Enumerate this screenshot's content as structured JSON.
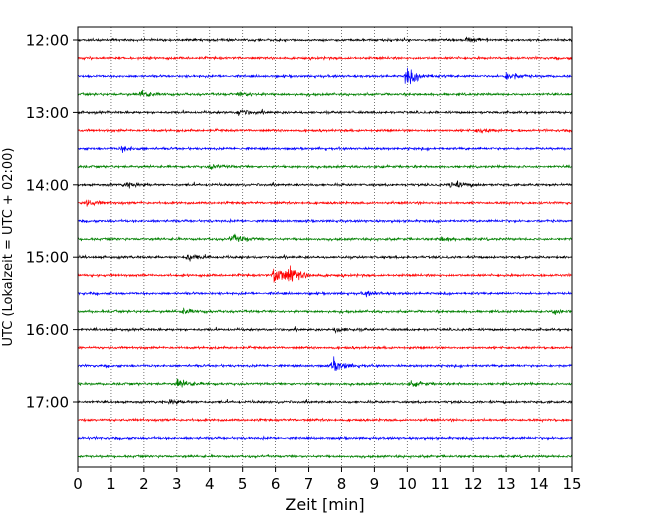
{
  "chart_data": {
    "type": "line",
    "chart_kind": "helicorder seismogram",
    "xlabel": "Zeit  [min]",
    "ylabel": "UTC (Lokalzeit = UTC + 02:00)",
    "xlim": [
      0,
      15
    ],
    "x_ticks": [
      0,
      1,
      2,
      3,
      4,
      5,
      6,
      7,
      8,
      9,
      10,
      11,
      12,
      13,
      14,
      15
    ],
    "x_tick_labels": [
      "0",
      "1",
      "2",
      "3",
      "4",
      "5",
      "6",
      "7",
      "8",
      "9",
      "10",
      "11",
      "12",
      "13",
      "14",
      "15"
    ],
    "y_tick_labels": [
      "12:00",
      "13:00",
      "14:00",
      "15:00",
      "16:00",
      "17:00"
    ],
    "grid": "vertical dotted at each minute",
    "trace_minutes": 15,
    "trace_colors": [
      "#000000",
      "#ff0000",
      "#0000ff",
      "#008000"
    ],
    "traces": [
      {
        "start": "12:00",
        "events": [
          {
            "t": 11.8,
            "amp": 2.5
          }
        ]
      },
      {
        "start": "12:15",
        "events": []
      },
      {
        "start": "12:30",
        "events": [
          {
            "t": 9.95,
            "amp": 8
          },
          {
            "t": 13.0,
            "amp": 4
          }
        ]
      },
      {
        "start": "12:45",
        "events": [
          {
            "t": 1.9,
            "amp": 3
          },
          {
            "t": 4.9,
            "amp": 2
          }
        ]
      },
      {
        "start": "13:00",
        "events": [
          {
            "t": 4.85,
            "amp": 2.5
          }
        ]
      },
      {
        "start": "13:15",
        "events": [
          {
            "t": 12.1,
            "amp": 2
          }
        ]
      },
      {
        "start": "13:30",
        "events": [
          {
            "t": 1.3,
            "amp": 2.5
          }
        ]
      },
      {
        "start": "13:45",
        "events": [
          {
            "t": 4.0,
            "amp": 2
          }
        ]
      },
      {
        "start": "14:00",
        "events": [
          {
            "t": 11.3,
            "amp": 4
          },
          {
            "t": 1.4,
            "amp": 2
          }
        ]
      },
      {
        "start": "14:15",
        "events": [
          {
            "t": 0.2,
            "amp": 3
          }
        ]
      },
      {
        "start": "14:30",
        "events": []
      },
      {
        "start": "14:45",
        "events": [
          {
            "t": 4.65,
            "amp": 4
          },
          {
            "t": 11.0,
            "amp": 2
          }
        ]
      },
      {
        "start": "15:00",
        "events": [
          {
            "t": 3.3,
            "amp": 3
          }
        ]
      },
      {
        "start": "15:15",
        "events": [
          {
            "t": 5.95,
            "amp": 11
          },
          {
            "t": 6.4,
            "amp": 5
          }
        ]
      },
      {
        "start": "15:30",
        "events": [
          {
            "t": 8.7,
            "amp": 2
          }
        ]
      },
      {
        "start": "15:45",
        "events": [
          {
            "t": 3.2,
            "amp": 2.5
          },
          {
            "t": 14.4,
            "amp": 2.5
          }
        ]
      },
      {
        "start": "16:00",
        "events": [
          {
            "t": 7.8,
            "amp": 2
          }
        ]
      },
      {
        "start": "16:15",
        "events": []
      },
      {
        "start": "16:30",
        "events": [
          {
            "t": 7.7,
            "amp": 6
          }
        ]
      },
      {
        "start": "16:45",
        "events": [
          {
            "t": 3.0,
            "amp": 4
          },
          {
            "t": 10.1,
            "amp": 2
          }
        ]
      },
      {
        "start": "17:00",
        "events": [
          {
            "t": 2.8,
            "amp": 2
          }
        ]
      },
      {
        "start": "17:15",
        "events": []
      },
      {
        "start": "17:30",
        "events": []
      },
      {
        "start": "17:45",
        "events": []
      }
    ]
  }
}
